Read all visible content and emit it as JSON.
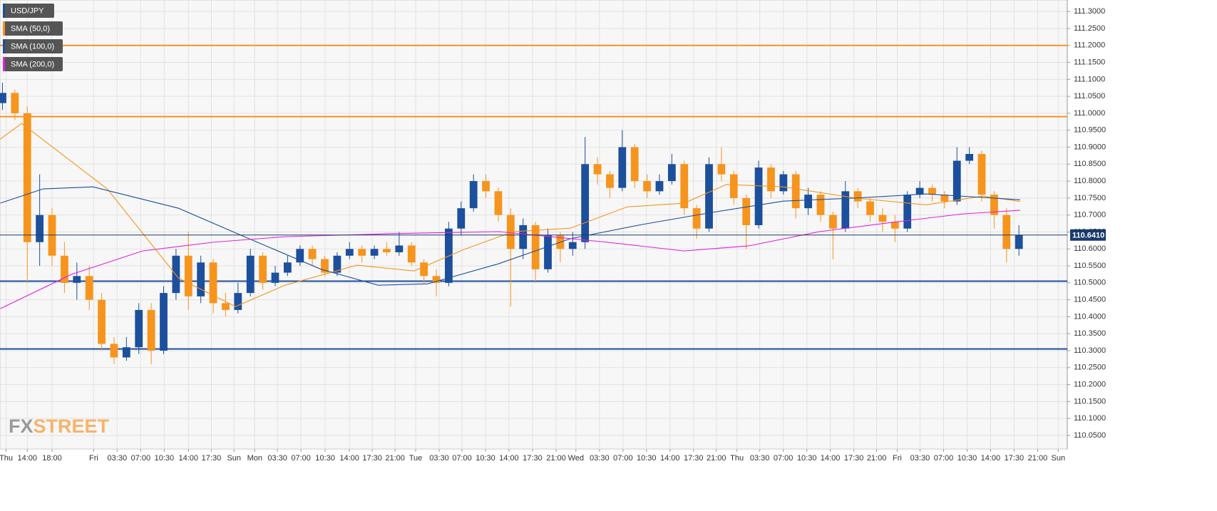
{
  "chart_data": {
    "type": "candlestick",
    "name": "USD/JPY",
    "up_color": "#1c4f9c",
    "down_color": "#f7941d",
    "open": [
      111.03,
      111.06,
      111.0,
      110.62,
      110.7,
      110.58,
      110.5,
      110.52,
      110.45,
      110.32,
      110.28,
      110.31,
      110.42,
      110.3,
      110.47,
      110.58,
      110.46,
      110.56,
      110.44,
      110.42,
      110.47,
      110.58,
      110.5,
      110.53,
      110.56,
      110.6,
      110.57,
      110.53,
      110.58,
      110.6,
      110.58,
      110.6,
      110.59,
      110.61,
      110.56,
      110.52,
      110.5,
      110.66,
      110.72,
      110.8,
      110.77,
      110.7,
      110.6,
      110.67,
      110.54,
      110.64,
      110.6,
      110.62,
      110.85,
      110.82,
      110.78,
      110.9,
      110.8,
      110.77,
      110.8,
      110.85,
      110.72,
      110.66,
      110.85,
      110.82,
      110.75,
      110.67,
      110.84,
      110.77,
      110.82,
      110.72,
      110.76,
      110.7,
      110.66,
      110.77,
      110.74,
      110.7,
      110.68,
      110.66,
      110.76,
      110.78,
      110.76,
      110.74,
      110.86,
      110.88,
      110.76,
      110.7,
      110.6
    ],
    "high": [
      111.09,
      111.07,
      111.02,
      110.82,
      110.72,
      110.62,
      110.56,
      110.55,
      110.47,
      110.34,
      110.34,
      110.44,
      110.44,
      110.49,
      110.6,
      110.65,
      110.58,
      110.57,
      110.47,
      110.5,
      110.6,
      110.59,
      110.55,
      110.58,
      110.61,
      110.61,
      110.58,
      110.59,
      110.62,
      110.61,
      110.61,
      110.62,
      110.65,
      110.62,
      110.57,
      110.54,
      110.68,
      110.74,
      110.82,
      110.82,
      110.78,
      110.72,
      110.69,
      110.68,
      110.66,
      110.65,
      110.65,
      110.93,
      110.87,
      110.83,
      110.95,
      110.91,
      110.82,
      110.82,
      110.88,
      110.86,
      110.73,
      110.87,
      110.9,
      110.83,
      110.76,
      110.86,
      110.85,
      110.83,
      110.83,
      110.78,
      110.77,
      110.71,
      110.8,
      110.78,
      110.75,
      110.72,
      110.7,
      110.77,
      110.8,
      110.79,
      110.77,
      110.9,
      110.9,
      110.89,
      110.77,
      110.72,
      110.67
    ],
    "low": [
      111.01,
      110.98,
      110.5,
      110.55,
      110.55,
      110.47,
      110.45,
      110.42,
      110.3,
      110.26,
      110.27,
      110.29,
      110.26,
      110.29,
      110.45,
      110.42,
      110.44,
      110.41,
      110.4,
      110.41,
      110.46,
      110.48,
      110.49,
      110.52,
      110.55,
      110.55,
      110.52,
      110.52,
      110.57,
      110.56,
      110.57,
      110.58,
      110.58,
      110.55,
      110.5,
      110.46,
      110.49,
      110.64,
      110.71,
      110.75,
      110.68,
      110.43,
      110.57,
      110.5,
      110.53,
      110.56,
      110.58,
      110.6,
      110.79,
      110.75,
      110.77,
      110.78,
      110.75,
      110.76,
      110.79,
      110.7,
      110.63,
      110.65,
      110.8,
      110.73,
      110.6,
      110.66,
      110.75,
      110.76,
      110.69,
      110.7,
      110.68,
      110.57,
      110.65,
      110.72,
      110.68,
      110.65,
      110.62,
      110.65,
      110.75,
      110.74,
      110.72,
      110.73,
      110.85,
      110.74,
      110.66,
      110.56,
      110.58
    ],
    "close": [
      111.06,
      111.0,
      110.62,
      110.7,
      110.58,
      110.5,
      110.52,
      110.45,
      110.32,
      110.28,
      110.31,
      110.42,
      110.3,
      110.47,
      110.58,
      110.46,
      110.56,
      110.44,
      110.42,
      110.47,
      110.58,
      110.5,
      110.53,
      110.56,
      110.6,
      110.57,
      110.53,
      110.58,
      110.6,
      110.58,
      110.6,
      110.59,
      110.61,
      110.56,
      110.52,
      110.5,
      110.66,
      110.72,
      110.8,
      110.77,
      110.7,
      110.6,
      110.67,
      110.54,
      110.64,
      110.6,
      110.62,
      110.85,
      110.82,
      110.78,
      110.9,
      110.8,
      110.77,
      110.8,
      110.85,
      110.72,
      110.66,
      110.85,
      110.82,
      110.75,
      110.67,
      110.84,
      110.77,
      110.82,
      110.72,
      110.76,
      110.7,
      110.66,
      110.77,
      110.74,
      110.7,
      110.68,
      110.66,
      110.76,
      110.78,
      110.76,
      110.74,
      110.86,
      110.88,
      110.76,
      110.7,
      110.6,
      110.641
    ],
    "series": [
      {
        "name": "SMA (50,0)",
        "color": "#f7941d",
        "x": [
          -0.17,
          1.55,
          8.45,
          14.2,
          18.8,
          22.8,
          28.6,
          33.2,
          37.2,
          41.2,
          45.8,
          50.4,
          55.0,
          58.4,
          63.0,
          68.8,
          74.5,
          79.1,
          82.1
        ],
        "values": [
          110.924,
          110.97,
          110.777,
          110.514,
          110.43,
          110.493,
          110.552,
          110.535,
          110.598,
          110.651,
          110.661,
          110.724,
          110.735,
          110.79,
          110.783,
          110.75,
          110.73,
          110.756,
          110.74
        ]
      },
      {
        "name": "SMA (100,0)",
        "color": "#1c4f9c",
        "x": [
          -0.17,
          3.28,
          7.3,
          14.2,
          19.9,
          25.7,
          30.3,
          34.3,
          40.0,
          45.8,
          51.6,
          57.3,
          63.0,
          68.8,
          74.5,
          82.1
        ],
        "values": [
          110.735,
          110.777,
          110.783,
          110.72,
          110.63,
          110.54,
          110.493,
          110.497,
          110.556,
          110.63,
          110.672,
          110.708,
          110.741,
          110.75,
          110.762,
          110.745
        ]
      },
      {
        "name": "SMA (200,0)",
        "color": "#e020e0",
        "x": [
          -0.17,
          5.57,
          11.3,
          17.07,
          22.8,
          31.4,
          40.06,
          48.7,
          55.0,
          60.2,
          65.9,
          71.7,
          77.4,
          82.1
        ],
        "values": [
          110.424,
          110.525,
          110.594,
          110.62,
          110.636,
          110.645,
          110.651,
          110.62,
          110.594,
          110.609,
          110.651,
          110.678,
          110.703,
          110.714
        ]
      }
    ],
    "levels": [
      {
        "value": 111.2,
        "color": "#f7941d"
      },
      {
        "value": 110.99,
        "color": "#f7941d"
      },
      {
        "value": 110.505,
        "color": "#1c4f9c"
      },
      {
        "value": 110.305,
        "color": "#1c4f9c"
      }
    ],
    "last_price": {
      "value": 110.641,
      "label": "110.6410"
    },
    "xlim": [
      -0.2,
      85.9
    ],
    "ylim": [
      110.01,
      111.334
    ],
    "xticks": [
      {
        "value": 0.29,
        "label": "Thu"
      },
      {
        "value": 2.0,
        "label": "14:00"
      },
      {
        "value": 4.0,
        "label": "18:00"
      },
      {
        "value": 7.36,
        "label": "Fri"
      },
      {
        "value": 9.25,
        "label": "03:30"
      },
      {
        "value": 11.15,
        "label": "07:00"
      },
      {
        "value": 13.05,
        "label": "10:30"
      },
      {
        "value": 15.0,
        "label": "14:00"
      },
      {
        "value": 16.85,
        "label": "17:30"
      },
      {
        "value": 18.68,
        "label": "Sun"
      },
      {
        "value": 20.35,
        "label": "Mon"
      },
      {
        "value": 22.18,
        "label": "03:30"
      },
      {
        "value": 24.08,
        "label": "07:00"
      },
      {
        "value": 26.03,
        "label": "10:30"
      },
      {
        "value": 27.99,
        "label": "14:00"
      },
      {
        "value": 29.83,
        "label": "17:30"
      },
      {
        "value": 31.67,
        "label": "21:00"
      },
      {
        "value": 33.33,
        "label": "Tue"
      },
      {
        "value": 35.23,
        "label": "03:30"
      },
      {
        "value": 37.07,
        "label": "07:00"
      },
      {
        "value": 38.97,
        "label": "10:30"
      },
      {
        "value": 40.86,
        "label": "14:00"
      },
      {
        "value": 42.76,
        "label": "17:30"
      },
      {
        "value": 44.66,
        "label": "21:00"
      },
      {
        "value": 46.26,
        "label": "Wed"
      },
      {
        "value": 48.16,
        "label": "03:30"
      },
      {
        "value": 50.06,
        "label": "07:00"
      },
      {
        "value": 51.95,
        "label": "10:30"
      },
      {
        "value": 53.85,
        "label": "14:00"
      },
      {
        "value": 55.75,
        "label": "17:30"
      },
      {
        "value": 57.59,
        "label": "21:00"
      },
      {
        "value": 59.25,
        "label": "Thu"
      },
      {
        "value": 61.09,
        "label": "03:30"
      },
      {
        "value": 62.99,
        "label": "07:00"
      },
      {
        "value": 64.89,
        "label": "10:30"
      },
      {
        "value": 66.78,
        "label": "14:00"
      },
      {
        "value": 68.68,
        "label": "17:30"
      },
      {
        "value": 70.52,
        "label": "21:00"
      },
      {
        "value": 72.18,
        "label": "Fri"
      },
      {
        "value": 74.02,
        "label": "03:30"
      },
      {
        "value": 75.92,
        "label": "07:00"
      },
      {
        "value": 77.82,
        "label": "10:30"
      },
      {
        "value": 79.71,
        "label": "14:00"
      },
      {
        "value": 81.61,
        "label": "17:30"
      },
      {
        "value": 83.51,
        "label": "21:00"
      },
      {
        "value": 85.17,
        "label": "Sun"
      }
    ],
    "yticks": [
      {
        "value": 111.3,
        "label": "111.3000"
      },
      {
        "value": 111.25,
        "label": "111.2500"
      },
      {
        "value": 111.2,
        "label": "111.2000"
      },
      {
        "value": 111.15,
        "label": "111.1500"
      },
      {
        "value": 111.1,
        "label": "111.1000"
      },
      {
        "value": 111.05,
        "label": "111.0500"
      },
      {
        "value": 111.0,
        "label": "111.0000"
      },
      {
        "value": 110.95,
        "label": "110.9500"
      },
      {
        "value": 110.9,
        "label": "110.9000"
      },
      {
        "value": 110.85,
        "label": "110.8500"
      },
      {
        "value": 110.8,
        "label": "110.8000"
      },
      {
        "value": 110.75,
        "label": "110.7500"
      },
      {
        "value": 110.7,
        "label": "110.7000"
      },
      {
        "value": 110.65,
        "label": "110.6500"
      },
      {
        "value": 110.6,
        "label": "110.6000"
      },
      {
        "value": 110.55,
        "label": "110.5500"
      },
      {
        "value": 110.5,
        "label": "110.5000"
      },
      {
        "value": 110.45,
        "label": "110.4500"
      },
      {
        "value": 110.4,
        "label": "110.4000"
      },
      {
        "value": 110.35,
        "label": "110.3500"
      },
      {
        "value": 110.3,
        "label": "110.3000"
      },
      {
        "value": 110.25,
        "label": "110.2500"
      },
      {
        "value": 110.2,
        "label": "110.2000"
      },
      {
        "value": 110.15,
        "label": "110.1500"
      },
      {
        "value": 110.1,
        "label": "110.1000"
      },
      {
        "value": 110.05,
        "label": "110.0500"
      }
    ],
    "grid": true,
    "watermark": {
      "left": "FX",
      "right": "STREET"
    }
  }
}
